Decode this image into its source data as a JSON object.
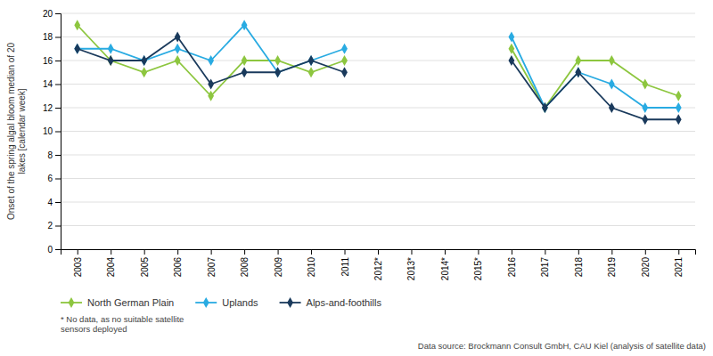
{
  "chart_data": {
    "type": "line",
    "categories": [
      "2003",
      "2004",
      "2005",
      "2006",
      "2007",
      "2008",
      "2009",
      "2010",
      "2011",
      "2012*",
      "2013*",
      "2014*",
      "2015*",
      "2016",
      "2017",
      "2018",
      "2019",
      "2020",
      "2021"
    ],
    "series": [
      {
        "name": "North German Plain",
        "color": "#8dc63f",
        "marker": "diamond",
        "values": [
          19,
          16,
          15,
          16,
          13,
          16,
          16,
          15,
          16,
          null,
          null,
          null,
          null,
          17,
          12,
          16,
          16,
          14,
          13
        ]
      },
      {
        "name": "Uplands",
        "color": "#29abe2",
        "marker": "diamond",
        "values": [
          17,
          17,
          16,
          17,
          16,
          19,
          15,
          16,
          17,
          null,
          null,
          null,
          null,
          18,
          12,
          15,
          14,
          12,
          12
        ]
      },
      {
        "name": "Alps-and-foothills",
        "color": "#1a3a5c",
        "marker": "diamond",
        "values": [
          17,
          16,
          16,
          18,
          14,
          15,
          15,
          16,
          15,
          null,
          null,
          null,
          null,
          16,
          12,
          15,
          12,
          11,
          11
        ]
      }
    ],
    "y_label": "Onset of the spring algal bloom median of 20\nlakes [calendar week]",
    "ylim": [
      0,
      20
    ],
    "yticks": [
      0,
      2,
      4,
      6,
      8,
      10,
      12,
      14,
      16,
      18,
      20
    ],
    "grid": true,
    "legend": "bottom",
    "annotations": [
      "* No data, as no suitable satellite\nsensors deployed",
      "Data source: Brockmann Consult GmbH, CAU Kiel (analysis of satellite data)"
    ]
  }
}
